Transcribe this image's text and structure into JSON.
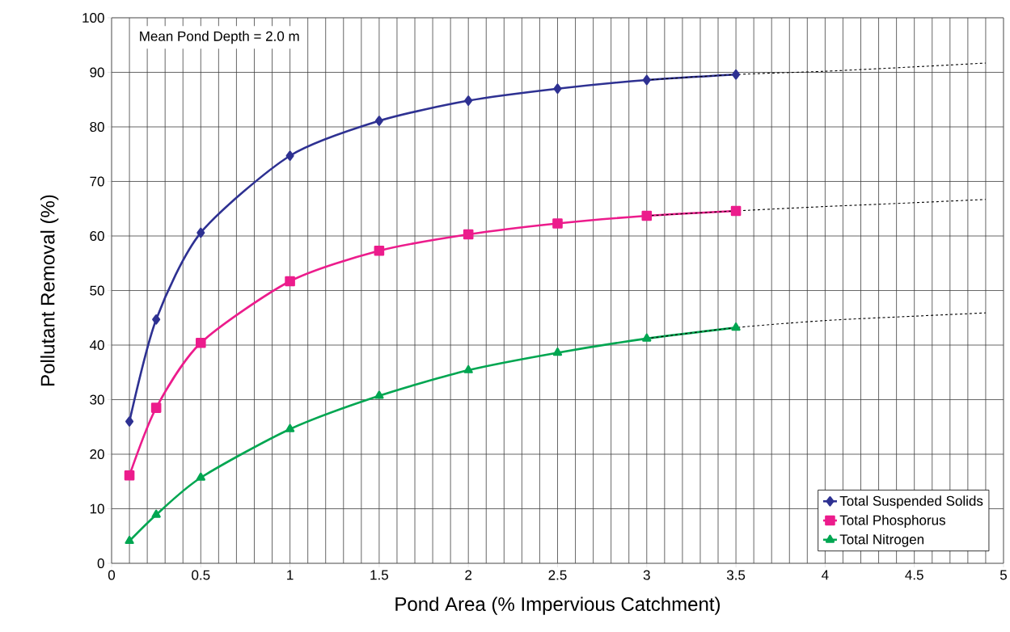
{
  "chart_data": {
    "type": "line",
    "xlabel": "Pond Area (% Impervious Catchment)",
    "ylabel": "Pollutant Removal (%)",
    "xlim": [
      0,
      5
    ],
    "ylim": [
      0,
      100
    ],
    "xticks": [
      0,
      0.5,
      1,
      1.5,
      2,
      2.5,
      3,
      3.5,
      4,
      4.5,
      5
    ],
    "yticks": [
      0,
      10,
      20,
      30,
      40,
      50,
      60,
      70,
      80,
      90,
      100
    ],
    "grid": true,
    "legend": "bottom right",
    "annotations": [
      "Mean Pond Depth = 2.0 m"
    ],
    "series": [
      {
        "name": "Total Suspended Solids",
        "color": "#2e3192",
        "marker": "diamond",
        "line_style": "solid",
        "x": [
          0.1,
          0.25,
          0.5,
          1,
          1.5,
          2,
          2.5,
          3,
          3.5
        ],
        "values": [
          26,
          44.7,
          60.6,
          74.7,
          81.1,
          84.8,
          87,
          88.6,
          89.6
        ]
      },
      {
        "name": "Total Phosphorus",
        "color": "#ec1c8c",
        "marker": "square",
        "line_style": "solid",
        "x": [
          0.1,
          0.25,
          0.5,
          1,
          1.5,
          2,
          2.5,
          3,
          3.5
        ],
        "values": [
          16.1,
          28.5,
          40.4,
          51.7,
          57.3,
          60.3,
          62.3,
          63.7,
          64.6
        ]
      },
      {
        "name": "Total Nitrogen",
        "color": "#00a651",
        "marker": "triangle",
        "line_style": "solid",
        "x": [
          0.1,
          0.25,
          0.5,
          1,
          1.5,
          2,
          2.5,
          3,
          3.5
        ],
        "values": [
          4.1,
          8.9,
          15.7,
          24.6,
          30.7,
          35.4,
          38.6,
          41.2,
          43.2
        ]
      },
      {
        "color": "#000000",
        "marker": "none",
        "line_style": "dashed",
        "x": [
          3,
          3.5,
          4,
          4.5,
          4.9
        ],
        "values": [
          88.6,
          89.6,
          90.2,
          91,
          91.7
        ]
      },
      {
        "color": "#000000",
        "marker": "none",
        "line_style": "dashed",
        "x": [
          3,
          3.5,
          4,
          4.5,
          4.9
        ],
        "values": [
          63.7,
          64.6,
          65.4,
          66.1,
          66.7
        ]
      },
      {
        "color": "#000000",
        "marker": "none",
        "line_style": "dashed",
        "x": [
          3,
          3.5,
          4,
          4.5,
          4.9
        ],
        "values": [
          41.2,
          43.2,
          44.5,
          45.3,
          45.9
        ]
      }
    ]
  }
}
